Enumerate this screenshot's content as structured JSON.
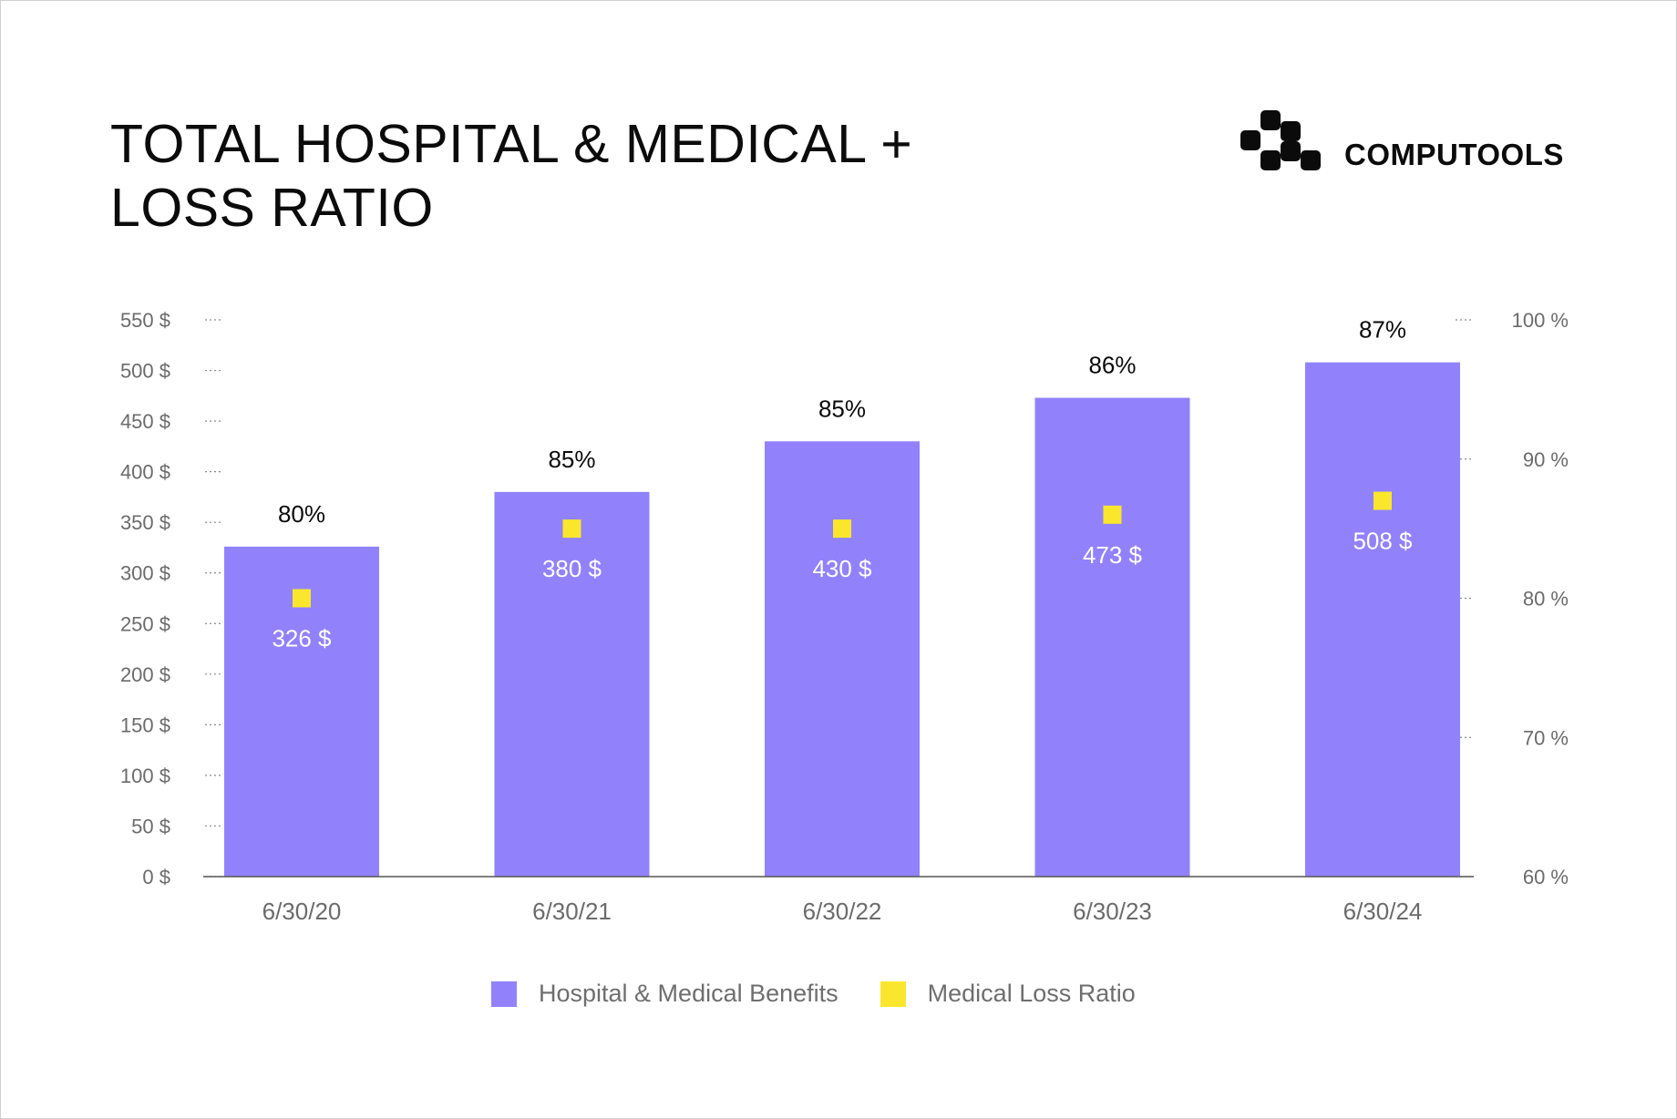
{
  "header": {
    "title_line1": "TOTAL HOSPITAL & MEDICAL +",
    "title_line2": "LOSS RATIO",
    "logo_text": "COMPUTOOLS",
    "logo_icon": "computools-logo-icon"
  },
  "colors": {
    "bar": "#9182fb",
    "marker": "#fae72d",
    "text": "#0b0b0b",
    "muted": "#6b6b6b"
  },
  "chart_data": {
    "type": "bar",
    "categories": [
      "6/30/20",
      "6/30/21",
      "6/30/22",
      "6/30/23",
      "6/30/24"
    ],
    "series": [
      {
        "name": "Hospital & Medical Benefits",
        "type": "bar",
        "axis": "left",
        "values": [
          326,
          380,
          430,
          473,
          508
        ],
        "labels": [
          "326 $",
          "380 $",
          "430 $",
          "473 $",
          "508 $"
        ]
      },
      {
        "name": "Medical Loss Ratio",
        "type": "scatter",
        "axis": "right",
        "values": [
          80,
          85,
          85,
          86,
          87
        ],
        "labels": [
          "80%",
          "85%",
          "85%",
          "86%",
          "87%"
        ]
      }
    ],
    "y_left": {
      "range": [
        0,
        550
      ],
      "ticks": [
        0,
        50,
        100,
        150,
        200,
        250,
        300,
        350,
        400,
        450,
        500,
        550
      ],
      "tick_labels": [
        "0 $",
        "50 $",
        "100 $",
        "150 $",
        "200 $",
        "250 $",
        "300 $",
        "350 $",
        "400 $",
        "450 $",
        "500 $",
        "550 $"
      ]
    },
    "y_right": {
      "range": [
        60,
        100
      ],
      "ticks": [
        60,
        70,
        80,
        90,
        100
      ],
      "tick_labels": [
        "60 %",
        "70 %",
        "80 %",
        "90 %",
        "100 %"
      ]
    },
    "grid": false,
    "legend": "bottom-center"
  }
}
